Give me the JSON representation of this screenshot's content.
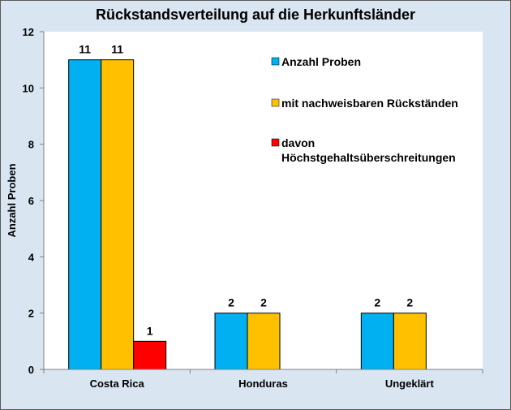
{
  "chart_data": {
    "type": "bar",
    "title": "Rückstandsverteilung auf die Herkunftsländer",
    "xlabel": "",
    "ylabel": "Anzahl Proben",
    "ylim": [
      0,
      12
    ],
    "yticks": [
      0,
      2,
      4,
      6,
      8,
      10,
      12
    ],
    "categories": [
      "Costa Rica",
      "Honduras",
      "Ungeklärt"
    ],
    "series": [
      {
        "name": "Anzahl Proben",
        "values": [
          11,
          2,
          2
        ],
        "color": "#00b0f0"
      },
      {
        "name": "mit nachweisbaren Rückständen",
        "values": [
          11,
          2,
          2
        ],
        "color": "#ffc000"
      },
      {
        "name": "davon Höchstgehaltsüberschreitungen",
        "values": [
          1,
          null,
          null
        ],
        "color": "#ff0000"
      }
    ],
    "legend_lines": [
      [
        "Anzahl Proben"
      ],
      [
        "mit nachweisbaren Rückständen"
      ],
      [
        "davon",
        "Höchstgehaltsüberschreitungen"
      ]
    ],
    "legend_position": "top-right",
    "grid": false,
    "plot_background": "#ffffff",
    "chart_background": "#d9e6f2",
    "bar_border_color": "#000000"
  }
}
